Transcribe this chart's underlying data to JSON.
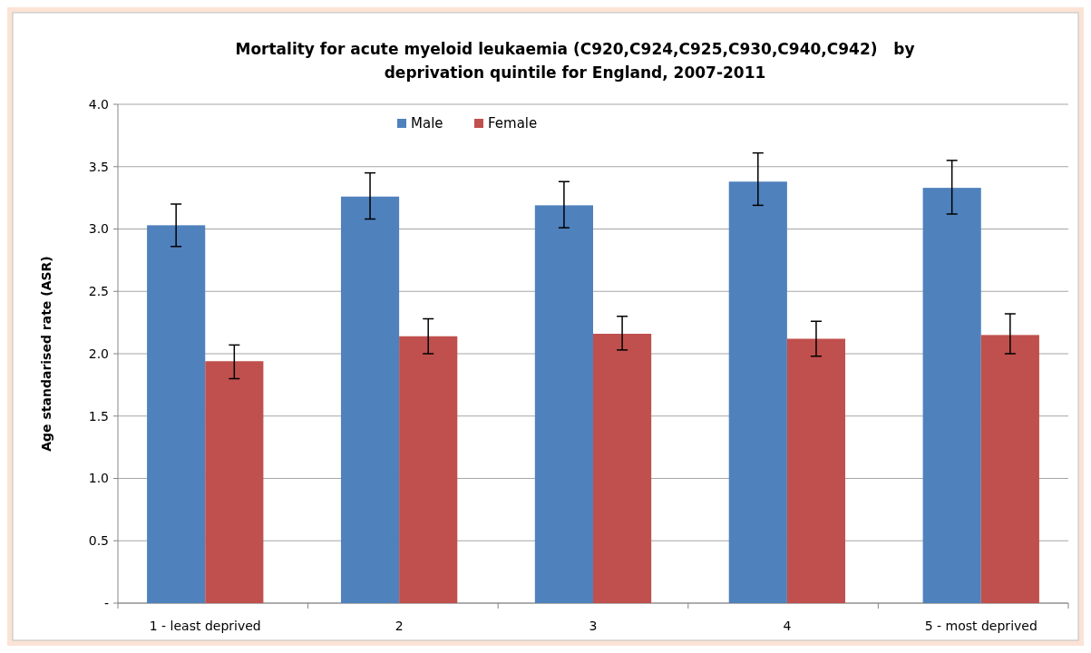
{
  "chart_data": {
    "type": "bar",
    "title": "Mortality for acute myeloid leukaemia (C920,C924,C925,C930,C940,C942)   by\ndeprivation quintile for England, 2007-2011",
    "ylabel": "Age standarised rate (ASR)",
    "categories": [
      "1 - least deprived",
      "2",
      "3",
      "4",
      "5 - most deprived"
    ],
    "series": [
      {
        "name": "Male",
        "color": "#4f81bd",
        "values": [
          3.03,
          3.26,
          3.19,
          3.38,
          3.33
        ],
        "errors": [
          [
            2.86,
            3.2
          ],
          [
            3.08,
            3.45
          ],
          [
            3.01,
            3.38
          ],
          [
            3.19,
            3.61
          ],
          [
            3.12,
            3.55
          ]
        ]
      },
      {
        "name": "Female",
        "color": "#c0504d",
        "values": [
          1.94,
          2.14,
          2.16,
          2.12,
          2.15
        ],
        "errors": [
          [
            1.8,
            2.07
          ],
          [
            2.0,
            2.28
          ],
          [
            2.03,
            2.3
          ],
          [
            1.98,
            2.26
          ],
          [
            2.0,
            2.32
          ]
        ]
      }
    ],
    "ylim": [
      0,
      4
    ],
    "yticks": [
      {
        "value": 0,
        "label": "-"
      },
      {
        "value": 0.5,
        "label": "0.5"
      },
      {
        "value": 1,
        "label": "1.0"
      },
      {
        "value": 1.5,
        "label": "1.5"
      },
      {
        "value": 2,
        "label": "2.0"
      },
      {
        "value": 2.5,
        "label": "2.5"
      },
      {
        "value": 3,
        "label": "3.0"
      },
      {
        "value": 3.5,
        "label": "3.5"
      },
      {
        "value": 4,
        "label": "4.0"
      }
    ],
    "grid": "y",
    "legend": "top"
  }
}
